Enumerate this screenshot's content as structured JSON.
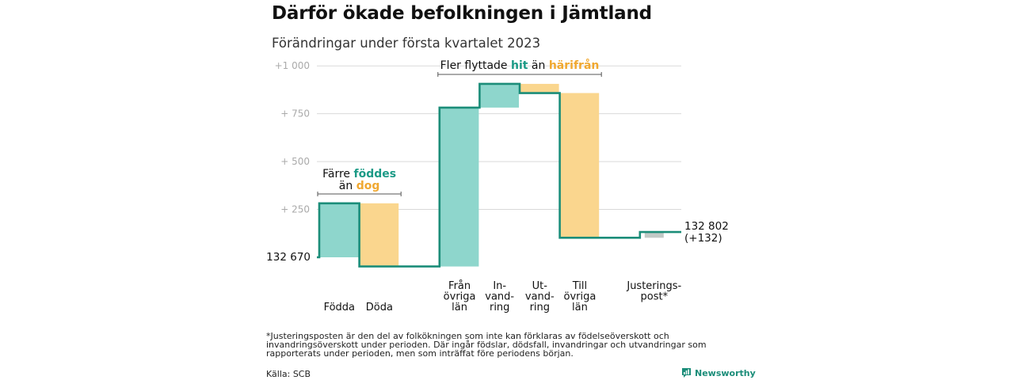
{
  "title": "Därför ökade befolkningen i Jämtland",
  "subtitle": "Förändringar under första kvartalet 2023",
  "footnote": "*Justeringsposten är den del av folkökningen som inte kan förklaras av födelseöverskott och invandringsöverskott under perioden. Där ingår födslar, dödsfall, invandringar och utvandringar som rapporterats under perioden, men som inträffat före periodens början.",
  "source": "Källa: SCB",
  "logo_text": "Newsworthy",
  "colors": {
    "increase": "#8ed6cc",
    "decrease": "#fad68e",
    "adjustment": "#c2c9c6",
    "line": "#1b8d79",
    "hit": "#1b9a86",
    "harifran": "#f0a830",
    "grid": "#d9d9d9"
  },
  "chart_data": {
    "type": "waterfall",
    "start_label": "132 670",
    "end_label": "132 802",
    "end_change_label": "(+132)",
    "yticks": [
      {
        "value": 1000,
        "label": "+1 000"
      },
      {
        "value": 750,
        "label": "+ 750"
      },
      {
        "value": 500,
        "label": "+ 500"
      },
      {
        "value": 250,
        "label": "+ 250"
      }
    ],
    "ylim": [
      -70,
      1000
    ],
    "steps": [
      {
        "key": "fodda",
        "label": [
          "Födda"
        ],
        "delta": 282,
        "kind": "increase"
      },
      {
        "key": "doda",
        "label": [
          "Döda"
        ],
        "delta": -330,
        "kind": "decrease"
      },
      {
        "key": "gap",
        "label": [],
        "delta": 0,
        "kind": "none"
      },
      {
        "key": "fran",
        "label": [
          "Från",
          "övriga",
          "län"
        ],
        "delta": 830,
        "kind": "increase"
      },
      {
        "key": "invandring",
        "label": [
          "In-",
          "vand-",
          "ring"
        ],
        "delta": 124,
        "kind": "increase"
      },
      {
        "key": "utvandring",
        "label": [
          "Ut-",
          "vand-",
          "ring"
        ],
        "delta": -48,
        "kind": "decrease"
      },
      {
        "key": "till",
        "label": [
          "Till",
          "övriga",
          "län"
        ],
        "delta": -756,
        "kind": "decrease"
      },
      {
        "key": "gap2",
        "label": [],
        "delta": 0,
        "kind": "none"
      },
      {
        "key": "justering",
        "label": [
          "Justerings-",
          "post*"
        ],
        "delta": 30,
        "kind": "adjustment"
      }
    ],
    "annotations": [
      {
        "key": "births",
        "lines": [
          [
            {
              "t": "Färre ",
              "c": "plain"
            },
            {
              "t": "föddes",
              "c": "hit"
            }
          ],
          [
            {
              "t": "än ",
              "c": "plain"
            },
            {
              "t": "dog",
              "c": "harifran"
            }
          ]
        ],
        "from_step": 0,
        "to_step": 1
      },
      {
        "key": "moves",
        "lines": [
          [
            {
              "t": "Fler flyttade ",
              "c": "plain"
            },
            {
              "t": "hit",
              "c": "hit"
            },
            {
              "t": " än ",
              "c": "plain"
            },
            {
              "t": "härifrån",
              "c": "harifran"
            }
          ]
        ],
        "from_step": 3,
        "to_step": 6
      }
    ]
  }
}
